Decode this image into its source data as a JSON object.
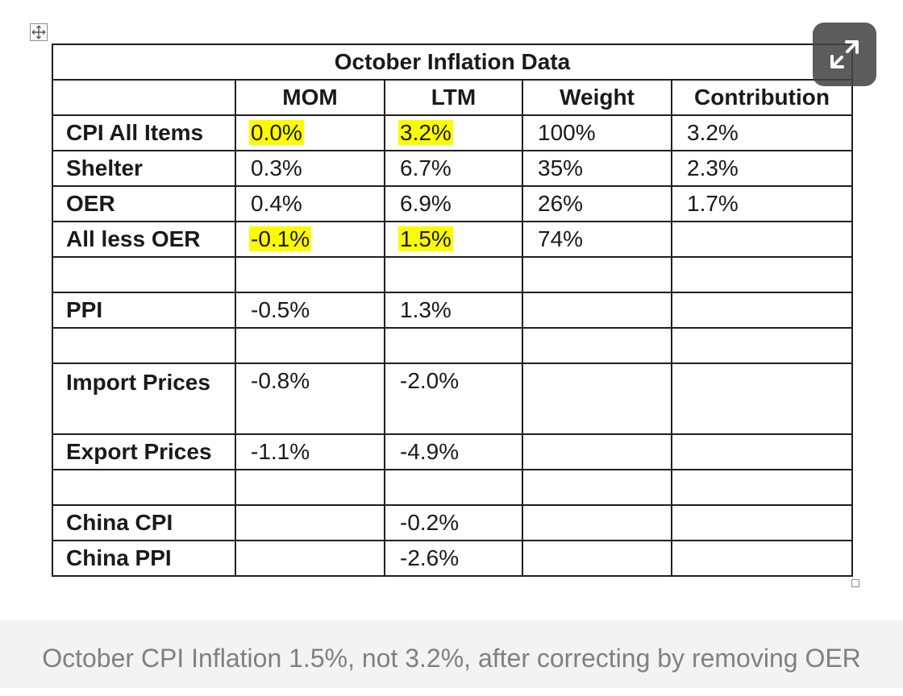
{
  "table": {
    "title": "October Inflation Data",
    "headers": [
      "",
      "MOM",
      "LTM",
      "Weight",
      "Contribution"
    ],
    "rows": [
      {
        "label": "CPI All Items",
        "mom": "0.0%",
        "ltm": "3.2%",
        "weight": "100%",
        "contribution": "3.2%",
        "highlight_mom": true,
        "highlight_ltm": true
      },
      {
        "label": "Shelter",
        "mom": "0.3%",
        "ltm": "6.7%",
        "weight": "35%",
        "contribution": "2.3%"
      },
      {
        "label": "OER",
        "mom": "0.4%",
        "ltm": "6.9%",
        "weight": "26%",
        "contribution": "1.7%"
      },
      {
        "label": "All less OER",
        "mom": "-0.1%",
        "ltm": "1.5%",
        "weight": "74%",
        "contribution": "",
        "highlight_mom": true,
        "highlight_ltm": true
      },
      {
        "label": "",
        "mom": "",
        "ltm": "",
        "weight": "",
        "contribution": ""
      },
      {
        "label": "PPI",
        "mom": "-0.5%",
        "ltm": "1.3%",
        "weight": "",
        "contribution": ""
      },
      {
        "label": "",
        "mom": "",
        "ltm": "",
        "weight": "",
        "contribution": ""
      },
      {
        "label": "Import Prices",
        "mom": "-0.8%",
        "ltm": "-2.0%",
        "weight": "",
        "contribution": "",
        "tall": true
      },
      {
        "label": "Export Prices",
        "mom": "-1.1%",
        "ltm": "-4.9%",
        "weight": "",
        "contribution": ""
      },
      {
        "label": "",
        "mom": "",
        "ltm": "",
        "weight": "",
        "contribution": ""
      },
      {
        "label": "China CPI",
        "mom": "",
        "ltm": "-0.2%",
        "weight": "",
        "contribution": ""
      },
      {
        "label": "China PPI",
        "mom": "",
        "ltm": "-2.6%",
        "weight": "",
        "contribution": ""
      }
    ]
  },
  "highlight_color": "#fdfb00",
  "icons": {
    "move": "move-handle-icon",
    "expand": "expand-icon",
    "resize": "resize-handle-icon"
  },
  "caption": "October CPI Inflation 1.5%, not 3.2%, after correcting by removing OER"
}
